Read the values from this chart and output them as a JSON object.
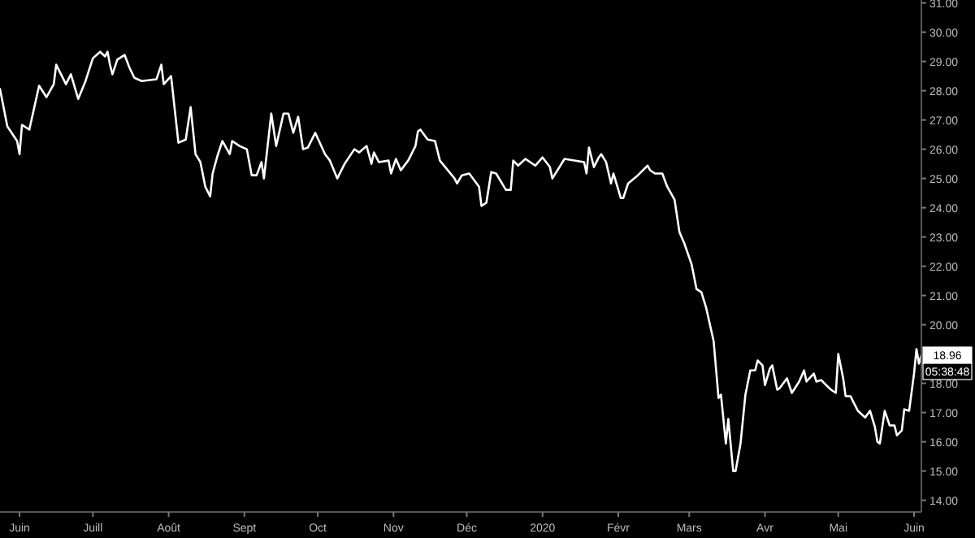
{
  "chart_data": {
    "type": "line",
    "x": [
      "2019-05-24",
      "2019-05-27",
      "2019-05-31",
      "2019-06-01",
      "2019-06-02",
      "2019-06-05",
      "2019-06-09",
      "2019-06-12",
      "2019-06-15",
      "2019-06-16",
      "2019-06-20",
      "2019-06-22",
      "2019-06-25",
      "2019-06-28",
      "2019-07-01",
      "2019-07-04",
      "2019-07-06",
      "2019-07-07",
      "2019-07-08",
      "2019-07-09",
      "2019-07-11",
      "2019-07-14",
      "2019-07-16",
      "2019-07-18",
      "2019-07-21",
      "2019-07-27",
      "2019-07-29",
      "2019-07-30",
      "2019-08-02",
      "2019-08-05",
      "2019-08-08",
      "2019-08-10",
      "2019-08-12",
      "2019-08-14",
      "2019-08-16",
      "2019-08-18",
      "2019-08-19",
      "2019-08-21",
      "2019-08-23",
      "2019-08-26",
      "2019-08-27",
      "2019-08-30",
      "2019-09-02",
      "2019-09-04",
      "2019-09-06",
      "2019-09-08",
      "2019-09-09",
      "2019-09-12",
      "2019-09-14",
      "2019-09-17",
      "2019-09-19",
      "2019-09-21",
      "2019-09-23",
      "2019-09-25",
      "2019-09-27",
      "2019-09-30",
      "2019-10-04",
      "2019-10-06",
      "2019-10-09",
      "2019-10-12",
      "2019-10-16",
      "2019-10-18",
      "2019-10-21",
      "2019-10-23",
      "2019-10-24",
      "2019-10-26",
      "2019-10-30",
      "2019-10-31",
      "2019-11-02",
      "2019-11-04",
      "2019-11-07",
      "2019-11-10",
      "2019-11-11",
      "2019-11-12",
      "2019-11-15",
      "2019-11-18",
      "2019-11-20",
      "2019-11-26",
      "2019-11-27",
      "2019-11-29",
      "2019-12-02",
      "2019-12-06",
      "2019-12-07",
      "2019-12-09",
      "2019-12-11",
      "2019-12-13",
      "2019-12-17",
      "2019-12-19",
      "2019-12-20",
      "2019-12-22",
      "2019-12-25",
      "2019-12-29",
      "2020-01-01",
      "2020-01-04",
      "2020-01-05",
      "2020-01-10",
      "2020-01-18",
      "2020-01-19",
      "2020-01-20",
      "2020-01-22",
      "2020-01-24",
      "2020-01-25",
      "2020-01-27",
      "2020-01-29",
      "2020-01-30",
      "2020-02-02",
      "2020-02-03",
      "2020-02-05",
      "2020-02-09",
      "2020-02-13",
      "2020-02-14",
      "2020-02-16",
      "2020-02-19",
      "2020-02-21",
      "2020-02-24",
      "2020-02-26",
      "2020-02-28",
      "2020-03-02",
      "2020-03-04",
      "2020-03-06",
      "2020-03-08",
      "2020-03-11",
      "2020-03-13",
      "2020-03-14",
      "2020-03-16",
      "2020-03-17",
      "2020-03-19",
      "2020-03-20",
      "2020-03-22",
      "2020-03-24",
      "2020-03-26",
      "2020-03-28",
      "2020-03-29",
      "2020-03-31",
      "2020-04-01",
      "2020-04-03",
      "2020-04-04",
      "2020-04-06",
      "2020-04-07",
      "2020-04-10",
      "2020-04-12",
      "2020-04-15",
      "2020-04-17",
      "2020-04-18",
      "2020-04-21",
      "2020-04-22",
      "2020-04-24",
      "2020-04-26",
      "2020-04-28",
      "2020-04-30",
      "2020-05-01",
      "2020-05-03",
      "2020-05-04",
      "2020-05-06",
      "2020-05-07",
      "2020-05-09",
      "2020-05-12",
      "2020-05-14",
      "2020-05-16",
      "2020-05-17",
      "2020-05-18",
      "2020-05-20",
      "2020-05-22",
      "2020-05-24",
      "2020-05-25",
      "2020-05-27",
      "2020-05-28",
      "2020-05-30",
      "2020-06-01",
      "2020-06-02",
      "2020-06-03",
      "2020-06-04"
    ],
    "series": [
      {
        "color": "#ffffff",
        "values": [
          28.06,
          26.78,
          26.28,
          25.83,
          26.83,
          26.67,
          28.17,
          27.78,
          28.22,
          28.89,
          28.22,
          28.56,
          27.72,
          28.33,
          29.11,
          29.33,
          29.17,
          29.33,
          28.89,
          28.56,
          29.06,
          29.22,
          28.78,
          28.44,
          28.33,
          28.39,
          28.89,
          28.22,
          28.5,
          26.22,
          26.33,
          27.44,
          25.83,
          25.56,
          24.72,
          24.39,
          25.17,
          25.78,
          26.28,
          25.83,
          26.28,
          26.11,
          26.0,
          25.11,
          25.11,
          25.56,
          25.0,
          27.22,
          26.11,
          27.22,
          27.22,
          26.56,
          27.11,
          26.0,
          26.06,
          26.56,
          25.83,
          25.61,
          25.0,
          25.5,
          26.0,
          25.89,
          26.11,
          25.5,
          25.89,
          25.56,
          25.61,
          25.17,
          25.67,
          25.28,
          25.61,
          26.11,
          26.61,
          26.67,
          26.33,
          26.28,
          25.61,
          25.0,
          24.83,
          25.11,
          25.17,
          24.72,
          24.06,
          24.17,
          25.22,
          25.17,
          24.61,
          24.61,
          25.61,
          25.44,
          25.67,
          25.44,
          25.72,
          25.39,
          25.0,
          25.67,
          25.56,
          25.17,
          26.06,
          25.39,
          25.72,
          25.83,
          25.56,
          24.83,
          25.17,
          24.33,
          24.33,
          24.83,
          25.11,
          25.44,
          25.28,
          25.17,
          25.17,
          24.72,
          24.28,
          23.17,
          22.78,
          22.06,
          21.22,
          21.11,
          20.56,
          19.44,
          17.5,
          17.61,
          15.94,
          16.78,
          15.0,
          15.0,
          15.94,
          17.61,
          18.44,
          18.44,
          18.78,
          18.61,
          17.94,
          18.5,
          18.61,
          17.78,
          17.83,
          18.17,
          17.67,
          18.06,
          18.44,
          18.06,
          18.33,
          18.06,
          18.11,
          17.94,
          17.78,
          17.67,
          19.0,
          18.17,
          17.56,
          17.56,
          17.39,
          17.06,
          16.83,
          17.06,
          16.5,
          16.0,
          15.94,
          17.06,
          16.56,
          16.56,
          16.22,
          16.39,
          17.11,
          17.06,
          18.33,
          19.17,
          18.67,
          18.96
        ]
      }
    ],
    "xlim": [
      "2019-05-24",
      "2020-06-04"
    ],
    "xticks": [
      {
        "value": "2019-06-01",
        "label": "Juin"
      },
      {
        "value": "2019-07-01",
        "label": "Juill"
      },
      {
        "value": "2019-08-01",
        "label": "Août"
      },
      {
        "value": "2019-09-01",
        "label": "Sept"
      },
      {
        "value": "2019-10-01",
        "label": "Oct"
      },
      {
        "value": "2019-11-01",
        "label": "Nov"
      },
      {
        "value": "2019-12-01",
        "label": "Déc"
      },
      {
        "value": "2020-01-01",
        "label": "2020"
      },
      {
        "value": "2020-02-01",
        "label": "Févr"
      },
      {
        "value": "2020-03-01",
        "label": "Mars"
      },
      {
        "value": "2020-04-01",
        "label": "Avr"
      },
      {
        "value": "2020-05-01",
        "label": "Mai"
      },
      {
        "value": "2020-06-01",
        "label": "Juin"
      }
    ],
    "ylim": [
      13.6,
      31.1
    ],
    "yticks": [
      {
        "value": 14,
        "label": "14.00"
      },
      {
        "value": 15,
        "label": "15.00"
      },
      {
        "value": 16,
        "label": "16.00"
      },
      {
        "value": 17,
        "label": "17.00"
      },
      {
        "value": 18,
        "label": "18.00"
      },
      {
        "value": 20,
        "label": "20.00"
      },
      {
        "value": 21,
        "label": "21.00"
      },
      {
        "value": 22,
        "label": "22.00"
      },
      {
        "value": 23,
        "label": "23.00"
      },
      {
        "value": 24,
        "label": "24.00"
      },
      {
        "value": 25,
        "label": "25.00"
      },
      {
        "value": 26,
        "label": "26.00"
      },
      {
        "value": 27,
        "label": "27.00"
      },
      {
        "value": 28,
        "label": "28.00"
      },
      {
        "value": 29,
        "label": "29.00"
      },
      {
        "value": 30,
        "label": "30.00"
      },
      {
        "value": 31,
        "label": "31.00"
      }
    ],
    "annotations": [
      {
        "text": "18.96",
        "x": "2020-06-04",
        "y": 18.96
      },
      "05:38:48"
    ],
    "grid": false,
    "marker": "none",
    "line_style": "solid"
  }
}
